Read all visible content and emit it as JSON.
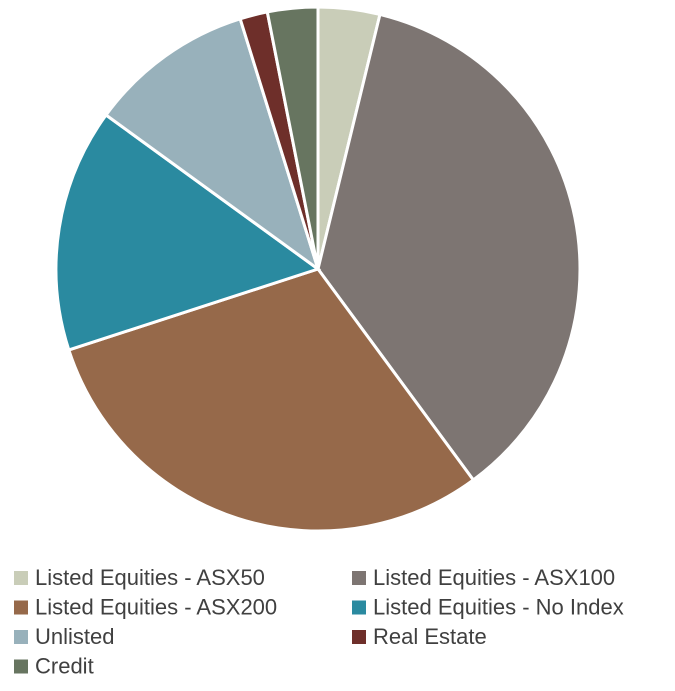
{
  "chart_data": {
    "type": "pie",
    "categories": [
      "Listed Equities - ASX50",
      "Listed Equities - ASX100",
      "Listed Equities - ASX200",
      "Listed Equities - No Index",
      "Unlisted",
      "Real Estate",
      "Credit"
    ],
    "values": [
      3.8,
      36.1,
      30.1,
      15.0,
      10.2,
      1.7,
      3.1
    ],
    "colors": [
      "#c9cdb8",
      "#7d7572",
      "#96694a",
      "#2a8aa0",
      "#98b1bb",
      "#6e2f2a",
      "#677560"
    ],
    "legend": "bottom"
  }
}
